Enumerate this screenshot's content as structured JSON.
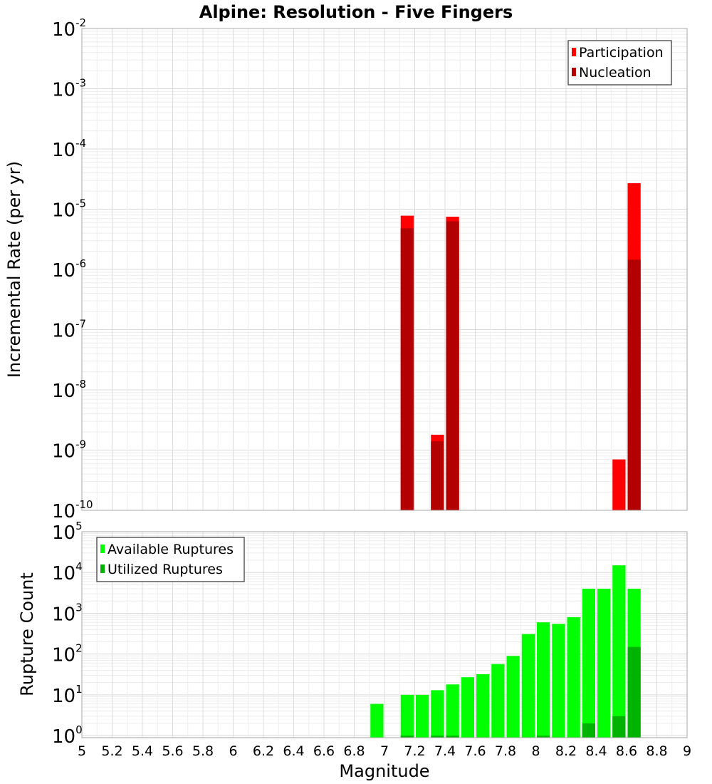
{
  "chart_data": {
    "title": "Alpine: Resolution - Five Fingers",
    "xlabel": "Magnitude",
    "xlim": [
      5,
      9
    ],
    "xticks": [
      "5",
      "5.2",
      "5.4",
      "5.6",
      "5.8",
      "6",
      "6.2",
      "6.4",
      "6.6",
      "6.8",
      "7",
      "7.2",
      "7.4",
      "7.6",
      "7.8",
      "8",
      "8.2",
      "8.4",
      "8.6",
      "8.8",
      "9"
    ],
    "bin_width": 0.1,
    "panels": [
      {
        "type": "bar",
        "scale": "log",
        "ylabel": "Incremental Rate (per yr)",
        "ylim_exp": [
          -10,
          -2
        ],
        "ytick_base": "10",
        "ytick_exps": [
          "-10",
          "-9",
          "-8",
          "-7",
          "-6",
          "-5",
          "-4",
          "-3",
          "-2"
        ],
        "legend": {
          "position": "top-right",
          "entries": [
            {
              "label": "Participation",
              "color": "#ff0000"
            },
            {
              "label": "Nucleation",
              "color": "#b30000"
            }
          ]
        },
        "series": [
          {
            "name": "Participation",
            "color": "#ff0000",
            "x": [
              7.15,
              7.35,
              7.45,
              8.55,
              8.65
            ],
            "values": [
              7.8e-06,
              1.8e-09,
              7.5e-06,
              7e-10,
              2.7e-05
            ]
          },
          {
            "name": "Nucleation",
            "color": "#b30000",
            "x": [
              7.15,
              7.35,
              7.45,
              8.65
            ],
            "values": [
              4.8e-06,
              1.4e-09,
              6.3e-06,
              1.45e-06
            ]
          }
        ]
      },
      {
        "type": "bar",
        "scale": "log",
        "ylabel": "Rupture Count",
        "ylim_exp": [
          -0.05,
          5
        ],
        "ytick_base": "10",
        "ytick_exps": [
          "0",
          "1",
          "2",
          "3",
          "4",
          "5"
        ],
        "legend": {
          "position": "top-left",
          "entries": [
            {
              "label": "Available Ruptures",
              "color": "#00ff00"
            },
            {
              "label": "Utilized Ruptures",
              "color": "#00b300"
            }
          ]
        },
        "series": [
          {
            "name": "Available Ruptures",
            "color": "#00ff00",
            "x": [
              6.95,
              7.15,
              7.25,
              7.35,
              7.45,
              7.55,
              7.65,
              7.75,
              7.85,
              7.95,
              8.05,
              8.15,
              8.25,
              8.35,
              8.45,
              8.55,
              8.65
            ],
            "values": [
              6,
              10,
              10,
              13,
              18,
              27,
              32,
              57,
              90,
              310,
              600,
              550,
              800,
              4000,
              4000,
              15000,
              4000
            ]
          },
          {
            "name": "Utilized Ruptures",
            "color": "#00b300",
            "x": [
              7.15,
              7.35,
              7.45,
              8.05,
              8.35,
              8.55,
              8.65
            ],
            "values": [
              1,
              1,
              1,
              1,
              2,
              3,
              150
            ]
          }
        ]
      }
    ]
  }
}
